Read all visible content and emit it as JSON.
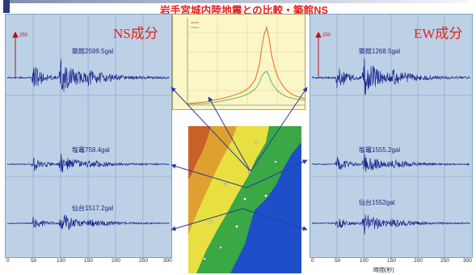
{
  "title": "岩手宮城内陸地震との比較・築館NS",
  "left_panel": {
    "component_label": "NS成分",
    "scale_label": "250",
    "stations": [
      {
        "label": "築館2599.5gal"
      },
      {
        "label": "塩竈758.4gal"
      },
      {
        "label": "仙台1517.2gal"
      }
    ],
    "x_ticks": [
      "0",
      "50",
      "100",
      "150",
      "200",
      "250",
      "300"
    ]
  },
  "right_panel": {
    "component_label": "EW成分",
    "scale_label": "250",
    "stations": [
      {
        "label": "築館1268.5gal"
      },
      {
        "label": "塩竈1555.2gal"
      },
      {
        "label": "仙台1552gal"
      }
    ],
    "x_ticks": [
      "0",
      "50",
      "100",
      "150",
      "200",
      "250",
      "300"
    ],
    "x_label": "時間(秒)"
  },
  "spectrum": {
    "legend": [
      "",
      ""
    ]
  },
  "colors": {
    "title": "#e8201a",
    "component_label": "#e8201a",
    "panel_bg": "#bcd1e6",
    "waveform": "#1c2a8c",
    "arrow": "#2a3aa0",
    "sea": "#1e4fc8",
    "spectrum_orange": "#e07830",
    "spectrum_green": "#6cbf5a"
  }
}
